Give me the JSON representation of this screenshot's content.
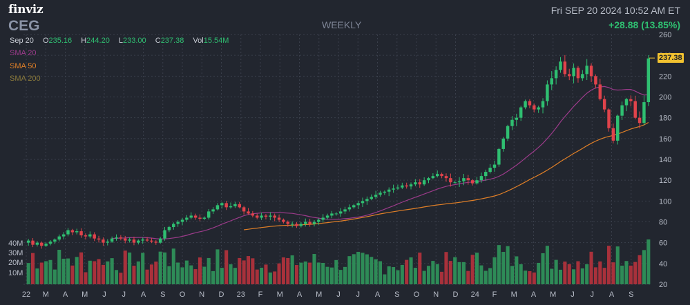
{
  "header": {
    "logo": "finviz",
    "ticker": "CEG",
    "timeframe": "WEEKLY",
    "datetime": "Fri SEP 20 2024 10:52 AM ET",
    "change": "+28.88 (13.85%)"
  },
  "ohlc": {
    "date": "Sep 20",
    "o_label": "O",
    "open": "235.16",
    "h_label": "H",
    "high": "244.20",
    "l_label": "L",
    "low": "233.00",
    "c_label": "C",
    "close": "237.38",
    "vol_label": "Vol",
    "volume": "15.54M"
  },
  "legend": {
    "sma20": "SMA 20",
    "sma50": "SMA 50",
    "sma200": "SMA 200"
  },
  "last_price_label": "237.38",
  "colors": {
    "up": "#2fbf71",
    "down": "#e0434b",
    "sma20": "#9b3b8a",
    "sma50": "#e07f27",
    "vol_up": "#2e8b57",
    "vol_down": "#a8313b",
    "grid": "#3a3f4b",
    "bg": "#22262f"
  },
  "chart_data": {
    "type": "candlestick",
    "title": "CEG",
    "timeframe": "WEEKLY",
    "ylim": [
      20,
      260
    ],
    "y_ticks": [
      260,
      240,
      220,
      200,
      180,
      160,
      140,
      120,
      100,
      80,
      60,
      40,
      20
    ],
    "x_tick_labels": [
      "22",
      "M",
      "A",
      "M",
      "J",
      "J",
      "A",
      "S",
      "O",
      "N",
      "D",
      "23",
      "F",
      "M",
      "A",
      "M",
      "J",
      "J",
      "A",
      "S",
      "O",
      "N",
      "D",
      "24",
      "F",
      "M",
      "A",
      "M",
      "J",
      "J",
      "A",
      "S"
    ],
    "volume_ticks": [
      "40M",
      "30M",
      "20M",
      "10M"
    ],
    "volume_max": 45,
    "close": [
      62,
      58,
      60,
      57,
      59,
      61,
      63,
      66,
      68,
      72,
      70,
      71,
      67,
      66,
      68,
      64,
      63,
      60,
      61,
      64,
      65,
      64,
      62,
      63,
      60,
      62,
      63,
      62,
      61,
      60,
      64,
      72,
      75,
      78,
      80,
      82,
      84,
      86,
      84,
      83,
      84,
      90,
      92,
      96,
      98,
      94,
      95,
      97,
      94,
      90,
      88,
      86,
      84,
      86,
      85,
      86,
      84,
      82,
      80,
      78,
      78,
      76,
      78,
      80,
      78,
      80,
      82,
      84,
      86,
      88,
      88,
      90,
      92,
      94,
      96,
      98,
      100,
      102,
      104,
      106,
      108,
      109,
      111,
      112,
      113,
      115,
      114,
      116,
      118,
      116,
      120,
      122,
      124,
      126,
      124,
      122,
      118,
      118,
      119,
      122,
      120,
      117,
      120,
      124,
      128,
      132,
      135,
      150,
      160,
      172,
      178,
      180,
      190,
      196,
      192,
      188,
      190,
      196,
      212,
      218,
      226,
      234,
      222,
      220,
      228,
      218,
      222,
      230,
      220,
      212,
      198,
      188,
      170,
      158,
      182,
      192,
      198,
      196,
      180,
      175,
      195,
      237
    ],
    "open_ratio_hint": "open/high/low derived from close series",
    "sma20": "rolling 20-week average of close",
    "sma50": "rolling 50-week average of close",
    "last_price": 237.38
  }
}
